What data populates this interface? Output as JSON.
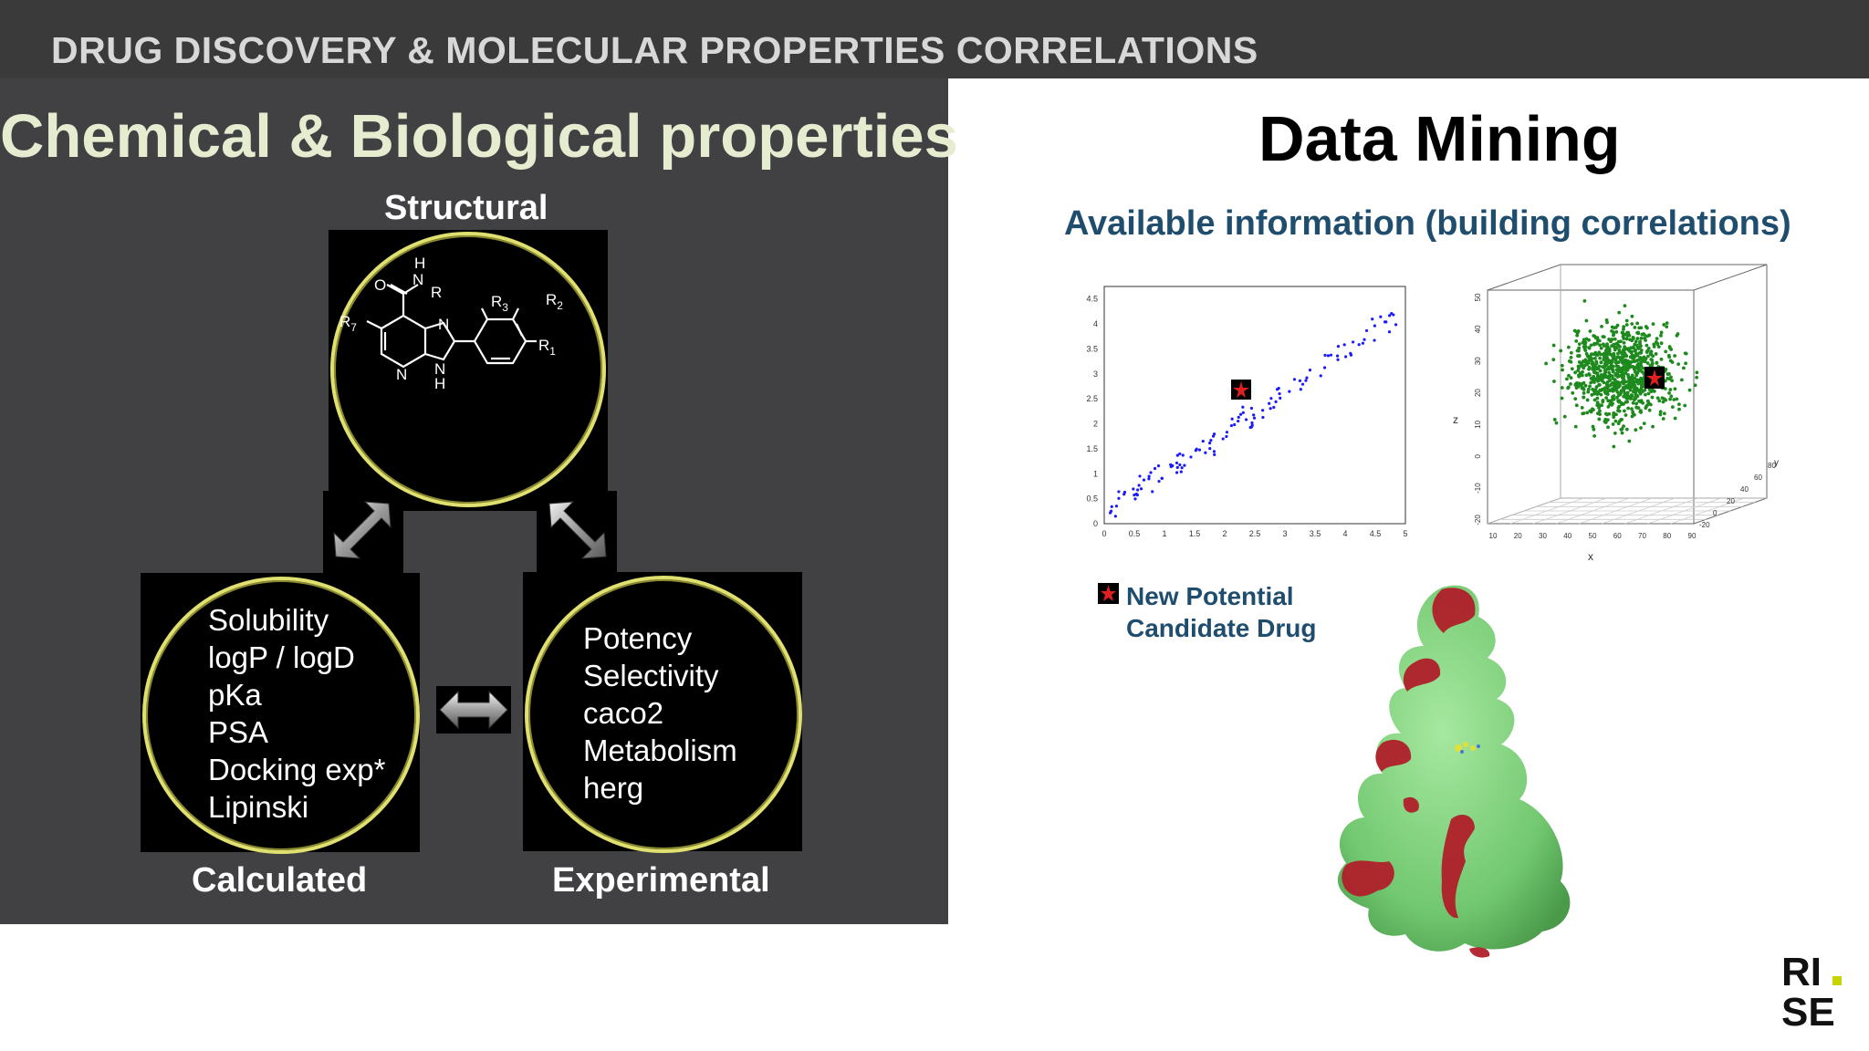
{
  "top_title": "DRUG DISCOVERY & MOLECULAR PROPERTIES CORRELATIONS",
  "left": {
    "heading": "Chemical & Biological properties",
    "structural_label": "Structural",
    "calculated_label": "Calculated",
    "experimental_label": "Experimental",
    "structure_labels": {
      "o": "O",
      "h_top": "H",
      "n_top": "N",
      "r": "R",
      "r7": "R",
      "r7_sub": "7",
      "r3": "R",
      "r3_sub": "3",
      "r2": "R",
      "r2_sub": "2",
      "r1": "R",
      "r1_sub": "1",
      "n_right": "N",
      "n_ring": "N",
      "n_bottom": "N",
      "h_bottom": "H"
    },
    "calculated_items": [
      "Solubility",
      "logP / logD",
      "pKa",
      "PSA",
      "Docking exp*",
      "Lipinski"
    ],
    "experimental_items": [
      "Potency",
      "Selectivity",
      "caco2",
      "Metabolism",
      "herg"
    ]
  },
  "right": {
    "heading": "Data Mining",
    "subheading": "Available information (building correlations)",
    "legend_line1": "New Potential",
    "legend_line2": "Candidate Drug"
  },
  "scatter2d": {
    "x_ticks": [
      "0",
      "0.5",
      "1",
      "1.5",
      "2",
      "2.5",
      "3",
      "3.5",
      "4",
      "4.5",
      "5"
    ],
    "y_ticks": [
      "0",
      "0.5",
      "1",
      "1.5",
      "2",
      "2.5",
      "3",
      "3.5",
      "4",
      "4.5"
    ],
    "point_color": "#1a1aff"
  },
  "scatter3d": {
    "x_ticks": [
      "10",
      "20",
      "30",
      "40",
      "50",
      "60",
      "70",
      "80",
      "90"
    ],
    "y_ticks": [
      "-20",
      "0",
      "20",
      "40",
      "60",
      "80"
    ],
    "z_ticks": [
      "-20",
      "-10",
      "0",
      "10",
      "20",
      "30",
      "40",
      "50"
    ],
    "x_label": "x",
    "y_label": "y",
    "z_label": "z",
    "point_color": "#1e8a1e"
  },
  "colors": {
    "left_panel": "#414042",
    "circle_border": "#e0e070",
    "subheading": "#1f4d6e",
    "protein_green": "#7ed47e",
    "protein_red": "#b0202a"
  },
  "logo": {
    "line1": "RI",
    "line2": "SE",
    "dot_color": "#c8d400"
  }
}
